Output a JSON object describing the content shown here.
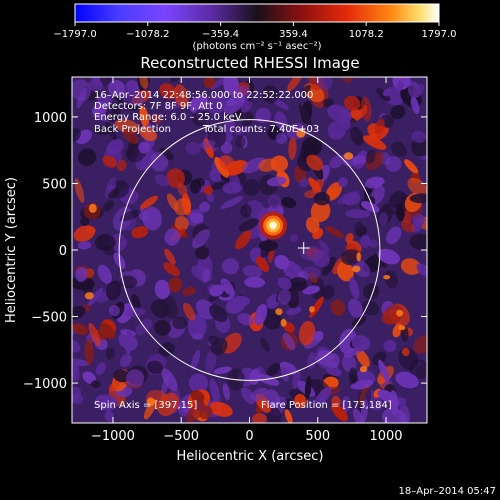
{
  "chart_data": {
    "type": "heatmap",
    "title": "Reconstructed RHESSI Image",
    "xlabel": "Heliocentric X (arcsec)",
    "ylabel": "Heliocentric Y (arcsec)",
    "xlim": [
      -1300,
      1300
    ],
    "ylim": [
      -1300,
      1300
    ],
    "x_ticks": [
      -1000,
      -500,
      0,
      500,
      1000
    ],
    "y_ticks": [
      -1000,
      -500,
      0,
      500,
      1000
    ],
    "x_tick_labels": [
      "−1000",
      "−500",
      "0",
      "500",
      "1000"
    ],
    "y_tick_labels": [
      "−1000",
      "−500",
      "0",
      "500",
      "1000"
    ],
    "colorbar": {
      "range": [
        -1797.0,
        1797.0
      ],
      "tick_values": [
        -1797.0,
        -1078.2,
        -359.4,
        359.4,
        1078.2,
        1797.0
      ],
      "tick_labels": [
        "−1797.0",
        "−1078.2",
        "−359.4",
        "359.4",
        "1078.2",
        "1797.0"
      ],
      "unit_label": "(photons cm⁻² s⁻¹ asec⁻²)"
    },
    "annotations": {
      "time_range": "16–Apr–2014 22:48:56.000 to 22:52:22.000",
      "detectors": "Detectors: 7F 8F 9F, Att 0",
      "energy_range": "Energy Range: 6.0 – 25.0 keV",
      "method": "Back Projection",
      "total_counts": "Total counts: 7.40E+03",
      "spin_axis": "Spin Axis = [397,15]",
      "flare_position": "Flare Position = [173,184]",
      "date_stamp": "18–Apr–2014 05:47"
    },
    "solar_limb": {
      "center": [
        0,
        0
      ],
      "radius_arcsec": 955
    },
    "spin_axis_marker": [
      397,
      15
    ],
    "flare_source": {
      "x": 173,
      "y": 184,
      "peak_value": 1797.0
    }
  }
}
